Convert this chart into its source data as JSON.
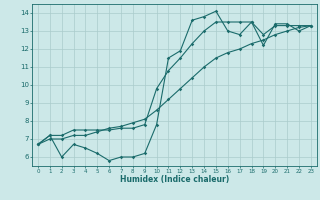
{
  "title": "",
  "xlabel": "Humidex (Indice chaleur)",
  "bg_color": "#cce8e8",
  "grid_color": "#aacccc",
  "line_color": "#1a6b6b",
  "xlim": [
    -0.5,
    23.5
  ],
  "ylim": [
    5.5,
    14.5
  ],
  "xticks": [
    0,
    1,
    2,
    3,
    4,
    5,
    6,
    7,
    8,
    9,
    10,
    11,
    12,
    13,
    14,
    15,
    16,
    17,
    18,
    19,
    20,
    21,
    22,
    23
  ],
  "yticks": [
    6,
    7,
    8,
    9,
    10,
    11,
    12,
    13,
    14
  ],
  "series1_x": [
    0,
    1,
    2,
    3,
    4,
    5,
    6,
    7,
    8,
    9,
    10,
    11,
    12,
    13,
    14,
    15,
    16,
    17,
    18,
    19,
    20,
    21,
    22,
    23
  ],
  "series1_y": [
    6.7,
    7.2,
    6.0,
    6.7,
    6.5,
    6.2,
    5.8,
    6.0,
    6.0,
    6.2,
    7.8,
    11.5,
    11.9,
    13.6,
    13.8,
    14.1,
    13.0,
    12.8,
    13.5,
    12.2,
    13.4,
    13.4,
    13.0,
    13.3
  ],
  "series2_x": [
    0,
    1,
    2,
    3,
    4,
    5,
    6,
    7,
    8,
    9,
    10,
    11,
    12,
    13,
    14,
    15,
    16,
    17,
    18,
    19,
    20,
    21,
    22,
    23
  ],
  "series2_y": [
    6.7,
    7.2,
    7.2,
    7.5,
    7.5,
    7.5,
    7.5,
    7.6,
    7.6,
    7.8,
    9.8,
    10.8,
    11.5,
    12.3,
    13.0,
    13.5,
    13.5,
    13.5,
    13.5,
    12.8,
    13.3,
    13.3,
    13.3,
    13.3
  ],
  "series3_x": [
    0,
    1,
    2,
    3,
    4,
    5,
    6,
    7,
    8,
    9,
    10,
    11,
    12,
    13,
    14,
    15,
    16,
    17,
    18,
    19,
    20,
    21,
    22,
    23
  ],
  "series3_y": [
    6.7,
    7.0,
    7.0,
    7.2,
    7.2,
    7.4,
    7.6,
    7.7,
    7.9,
    8.1,
    8.6,
    9.2,
    9.8,
    10.4,
    11.0,
    11.5,
    11.8,
    12.0,
    12.3,
    12.5,
    12.8,
    13.0,
    13.2,
    13.3
  ],
  "marker_size": 1.8,
  "line_width": 0.8,
  "xlabel_fontsize": 5.5,
  "xtick_fontsize": 4.0,
  "ytick_fontsize": 5.0
}
